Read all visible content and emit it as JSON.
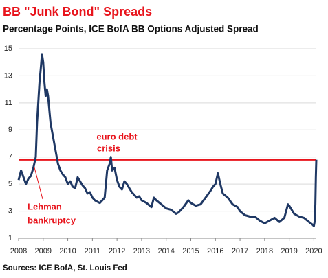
{
  "chart_data": {
    "type": "line",
    "title": "BB \"Junk Bond\" Spreads",
    "subtitle": "Percentage Points, ICE BofA BB Options Adjusted Spread",
    "source": "Sources: ICE BofA, St. Louis Fed",
    "annotations": [
      {
        "lines": [
          "euro debt",
          "crisis"
        ],
        "color": "#e8141c"
      },
      {
        "lines": [
          "Lehman",
          "bankruptcy"
        ],
        "color": "#e8141c"
      }
    ],
    "reference_line": {
      "value": 6.8,
      "color": "#e8141c"
    },
    "xlim": [
      2008,
      2020.1
    ],
    "xticks": [
      2008,
      2009,
      2010,
      2011,
      2012,
      2013,
      2014,
      2015,
      2016,
      2017,
      2018,
      2019,
      2020
    ],
    "ylim": [
      1,
      15
    ],
    "yticks": [
      1,
      3,
      5,
      7,
      9,
      11,
      13,
      15
    ],
    "grid": true,
    "series": [
      {
        "name": "BB OAS",
        "color": "#1f3864",
        "x": [
          2008.0,
          2008.1,
          2008.2,
          2008.3,
          2008.4,
          2008.5,
          2008.6,
          2008.7,
          2008.75,
          2008.8,
          2008.85,
          2008.9,
          2008.95,
          2009.0,
          2009.05,
          2009.1,
          2009.15,
          2009.2,
          2009.3,
          2009.4,
          2009.5,
          2009.6,
          2009.7,
          2009.8,
          2009.9,
          2010.0,
          2010.1,
          2010.2,
          2010.3,
          2010.4,
          2010.5,
          2010.6,
          2010.7,
          2010.8,
          2010.9,
          2011.0,
          2011.1,
          2011.2,
          2011.3,
          2011.4,
          2011.5,
          2011.6,
          2011.7,
          2011.75,
          2011.8,
          2011.9,
          2012.0,
          2012.1,
          2012.2,
          2012.3,
          2012.4,
          2012.5,
          2012.6,
          2012.7,
          2012.8,
          2012.9,
          2013.0,
          2013.2,
          2013.4,
          2013.5,
          2013.6,
          2013.8,
          2014.0,
          2014.2,
          2014.4,
          2014.5,
          2014.7,
          2014.9,
          2015.0,
          2015.2,
          2015.4,
          2015.6,
          2015.8,
          2015.9,
          2016.0,
          2016.1,
          2016.2,
          2016.3,
          2016.5,
          2016.7,
          2016.9,
          2017.0,
          2017.2,
          2017.4,
          2017.6,
          2017.8,
          2018.0,
          2018.2,
          2018.4,
          2018.6,
          2018.8,
          2018.95,
          2019.0,
          2019.2,
          2019.4,
          2019.6,
          2019.8,
          2019.95,
          2020.0,
          2020.03,
          2020.06,
          2020.08,
          2020.1
        ],
        "values": [
          5.3,
          6.0,
          5.5,
          5.0,
          5.4,
          5.6,
          6.2,
          7.0,
          9.5,
          11.0,
          12.5,
          13.5,
          14.6,
          14.0,
          12.5,
          11.5,
          12.0,
          11.5,
          9.5,
          8.5,
          7.5,
          6.5,
          6.0,
          5.7,
          5.5,
          5.0,
          5.2,
          4.8,
          4.7,
          5.5,
          5.2,
          4.9,
          4.7,
          4.3,
          4.4,
          4.0,
          3.8,
          3.7,
          3.6,
          3.8,
          4.0,
          6.0,
          6.5,
          7.0,
          6.0,
          6.2,
          5.3,
          4.8,
          4.6,
          5.2,
          5.0,
          4.7,
          4.4,
          4.2,
          4.0,
          4.1,
          3.8,
          3.6,
          3.3,
          4.0,
          3.8,
          3.5,
          3.2,
          3.1,
          2.8,
          2.9,
          3.3,
          3.8,
          3.6,
          3.4,
          3.5,
          4.0,
          4.5,
          4.8,
          5.0,
          5.8,
          5.0,
          4.3,
          4.0,
          3.5,
          3.3,
          3.0,
          2.7,
          2.6,
          2.6,
          2.3,
          2.1,
          2.3,
          2.5,
          2.2,
          2.5,
          3.5,
          3.4,
          2.8,
          2.6,
          2.5,
          2.2,
          2.0,
          1.9,
          2.2,
          3.5,
          5.5,
          6.8
        ]
      }
    ]
  }
}
